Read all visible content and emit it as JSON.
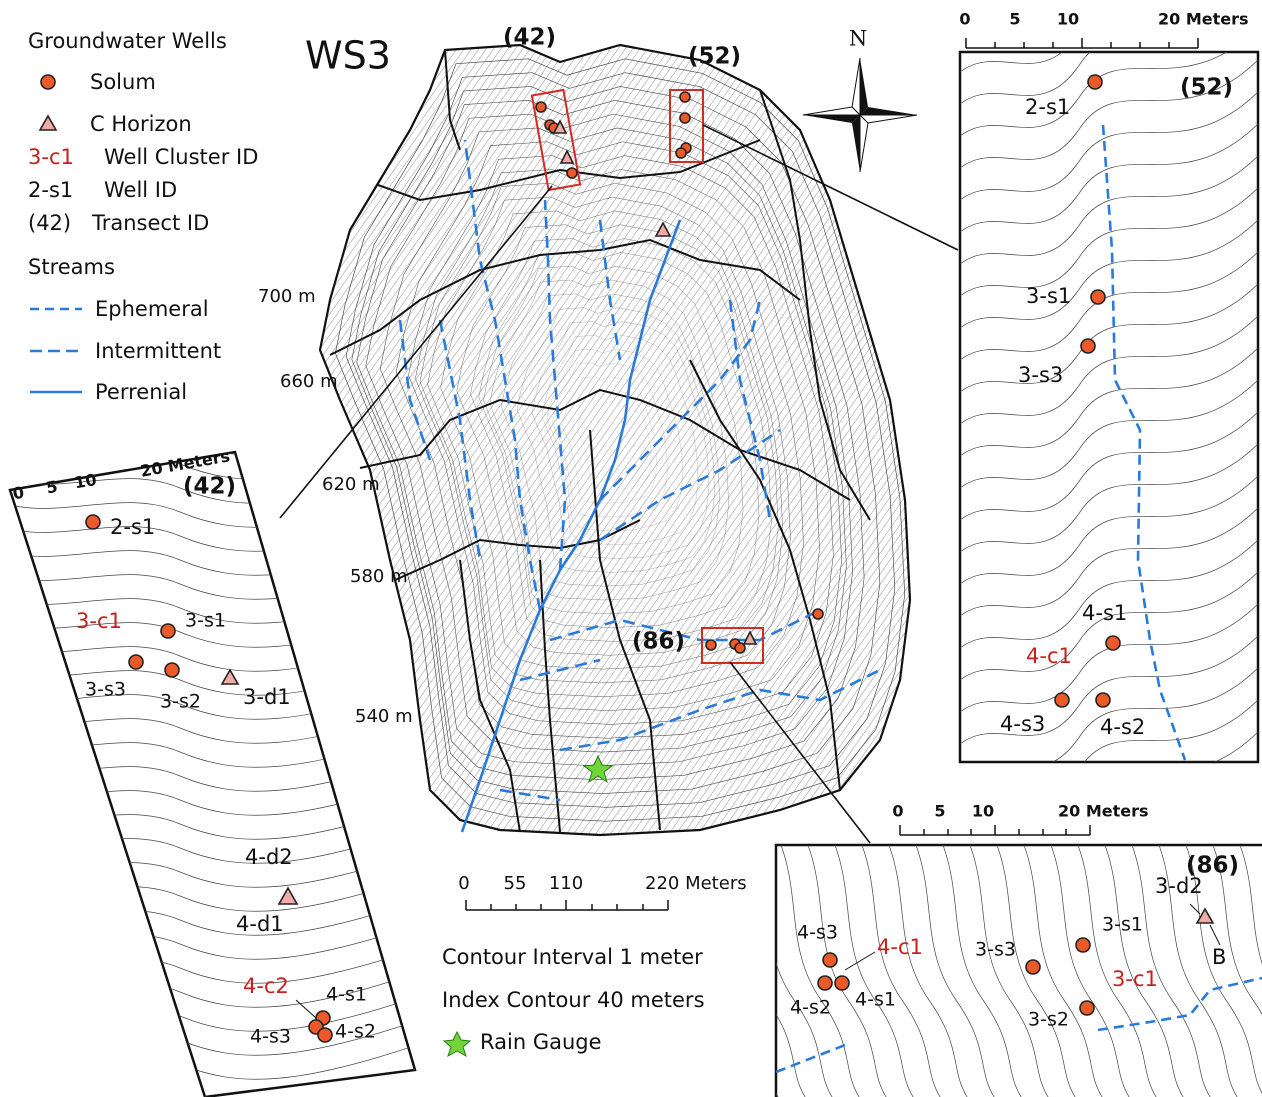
{
  "legend": {
    "heading": "Groundwater Wells",
    "wells": [
      "Solum",
      "C Horizon"
    ],
    "ids": [
      {
        "example": "3-c1",
        "label": "Well Cluster ID"
      },
      {
        "example": "2-s1",
        "label": "Well ID"
      },
      {
        "example": "(42)",
        "label": "Transect ID"
      }
    ],
    "streams_heading": "Streams",
    "streams": [
      "Ephemeral",
      "Intermittent",
      "Perrenial"
    ]
  },
  "map": {
    "title": "WS3",
    "north": "N",
    "transects": [
      "(42)",
      "(52)",
      "(86)"
    ],
    "elevations": [
      "700 m",
      "660 m",
      "620 m",
      "580 m",
      "540 m"
    ],
    "scale_bar": [
      "0",
      "55",
      "110",
      "220 Meters"
    ],
    "notes": [
      "Contour Interval 1 meter",
      "Index Contour 40 meters"
    ],
    "rain_gauge": "Rain Gauge"
  },
  "insets": [
    {
      "transect": "(42)",
      "scale_bar": [
        "0",
        "5",
        "10",
        "20 Meters"
      ],
      "labels": [
        "2-s1",
        "3-c1",
        "3-s1",
        "3-s3",
        "3-s2",
        "3-d1",
        "4-d2",
        "4-d1",
        "4-c2",
        "4-s1",
        "4-s3",
        "4-s2"
      ]
    },
    {
      "transect": "(52)",
      "scale_bar": [
        "0",
        "5",
        "10",
        "20 Meters"
      ],
      "labels": [
        "2-s1",
        "3-s1",
        "3-s3",
        "4-s1",
        "4-c1",
        "4-s3",
        "4-s2"
      ]
    },
    {
      "transect": "(86)",
      "scale_bar": [
        "0",
        "5",
        "10",
        "20 Meters"
      ],
      "labels": [
        "4-s3",
        "4-c1",
        "4-s2",
        "4-s1",
        "3-s3",
        "3-s1",
        "3-c1",
        "3-s2",
        "3-d2",
        "B"
      ]
    }
  ]
}
